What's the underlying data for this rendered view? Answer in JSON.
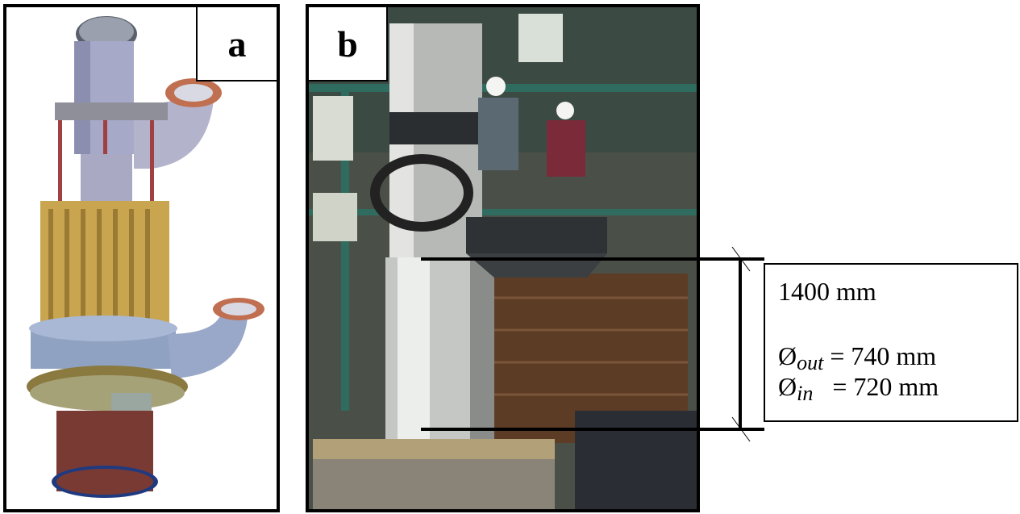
{
  "panels": {
    "a": {
      "label": "a"
    },
    "b": {
      "label": "b"
    }
  },
  "annotation": {
    "height": "1400 mm",
    "outer_symbol": "Ø",
    "outer_sub": "out",
    "outer_value": " = 740 mm",
    "inner_symbol": "Ø",
    "inner_sub": "in",
    "inner_value": "   = 720 mm"
  }
}
